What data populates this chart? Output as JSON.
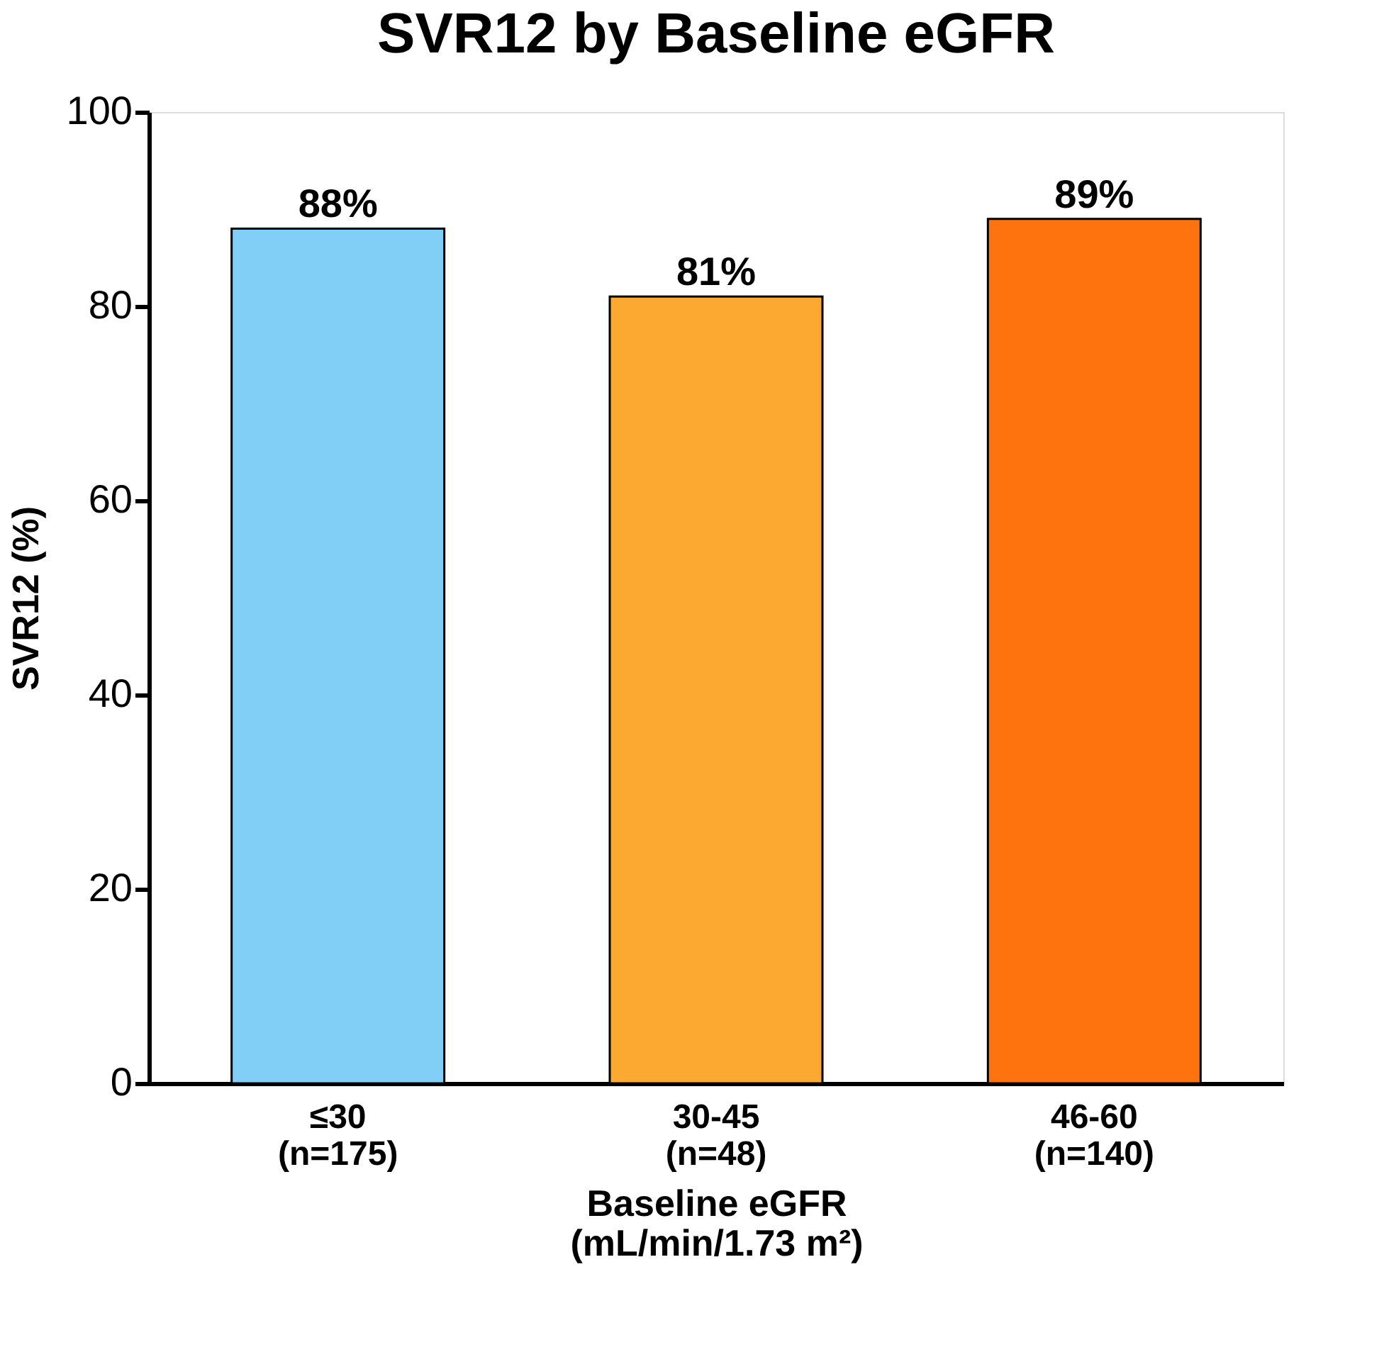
{
  "chart_data": {
    "type": "bar",
    "title": "SVR12 by Baseline eGFR",
    "xlabel": "Baseline eGFR\n(mL/min/1.73 m²)",
    "ylabel": "SVR12 (%)",
    "categories": [
      "≤30\n(n=175)",
      "30-45\n(n=48)",
      "46-60\n(n=140)"
    ],
    "values": [
      88,
      81,
      89
    ],
    "colors": [
      "#81cff7",
      "#fba930",
      "#ff730f"
    ],
    "value_labels": [
      "88%",
      "81%",
      "89%"
    ],
    "ylim": [
      0,
      100
    ],
    "yticks": [
      0,
      20,
      40,
      60,
      80,
      100
    ],
    "grid": false,
    "legend": false
  }
}
